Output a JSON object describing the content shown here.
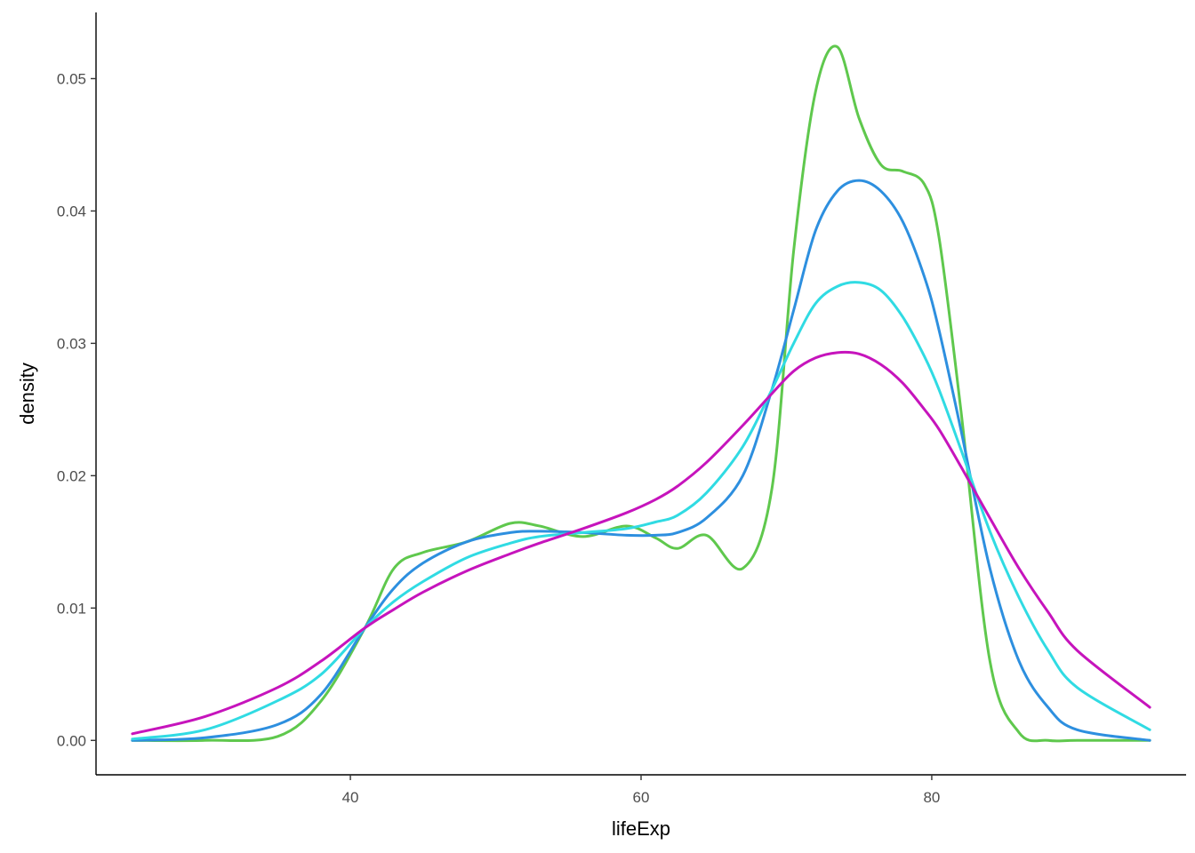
{
  "chart_data": {
    "type": "line",
    "title": "",
    "xlabel": "lifeExp",
    "ylabel": "density",
    "xlim": [
      22.5,
      97.5
    ],
    "ylim": [
      -0.0026,
      0.055
    ],
    "x_ticks": [
      40,
      60,
      80
    ],
    "x_tick_labels": [
      "40",
      "60",
      "80"
    ],
    "y_ticks": [
      0.0,
      0.01,
      0.02,
      0.03,
      0.04,
      0.05
    ],
    "y_tick_labels": [
      "0.00",
      "0.01",
      "0.02",
      "0.03",
      "0.04",
      "0.05"
    ],
    "grid": false,
    "legend": "none",
    "x": [
      25,
      30,
      35,
      38,
      41,
      43,
      45,
      48,
      51,
      53,
      56,
      59,
      61,
      62.5,
      64.5,
      67,
      69,
      70.5,
      72,
      73.5,
      75,
      76.5,
      78,
      79.5,
      80.5,
      82,
      84,
      86,
      88,
      90,
      95
    ],
    "series": [
      {
        "color": "#5fc84d",
        "values": [
          0.0,
          0.0,
          0.0003,
          0.003,
          0.0085,
          0.013,
          0.0142,
          0.015,
          0.0164,
          0.0162,
          0.0154,
          0.0162,
          0.0153,
          0.0145,
          0.0155,
          0.013,
          0.019,
          0.037,
          0.049,
          0.0524,
          0.047,
          0.0435,
          0.043,
          0.042,
          0.038,
          0.025,
          0.006,
          0.0006,
          0.0,
          0.0,
          0.0
        ]
      },
      {
        "color": "#2d8fdf",
        "values": [
          0.0,
          0.0002,
          0.0012,
          0.0035,
          0.0085,
          0.0115,
          0.0134,
          0.015,
          0.0157,
          0.0158,
          0.0157,
          0.0155,
          0.0155,
          0.0157,
          0.0168,
          0.02,
          0.0265,
          0.0325,
          0.0385,
          0.0415,
          0.0423,
          0.0415,
          0.0392,
          0.035,
          0.031,
          0.0235,
          0.013,
          0.006,
          0.0025,
          0.0008,
          0.0
        ]
      },
      {
        "color": "#30dbe3",
        "values": [
          0.0001,
          0.0008,
          0.003,
          0.005,
          0.0085,
          0.0105,
          0.012,
          0.0138,
          0.0149,
          0.0154,
          0.0157,
          0.016,
          0.0165,
          0.017,
          0.0187,
          0.0222,
          0.0265,
          0.03,
          0.033,
          0.0343,
          0.0346,
          0.034,
          0.032,
          0.029,
          0.0265,
          0.022,
          0.0158,
          0.0108,
          0.0068,
          0.004,
          0.0008
        ]
      },
      {
        "color": "#c614bc",
        "values": [
          0.0005,
          0.0018,
          0.004,
          0.006,
          0.0085,
          0.0099,
          0.0112,
          0.0128,
          0.0141,
          0.0149,
          0.016,
          0.0172,
          0.0182,
          0.0192,
          0.021,
          0.0238,
          0.0262,
          0.0279,
          0.0289,
          0.0293,
          0.0292,
          0.0284,
          0.027,
          0.025,
          0.0235,
          0.0207,
          0.0168,
          0.013,
          0.0097,
          0.0068,
          0.0025
        ]
      }
    ]
  }
}
